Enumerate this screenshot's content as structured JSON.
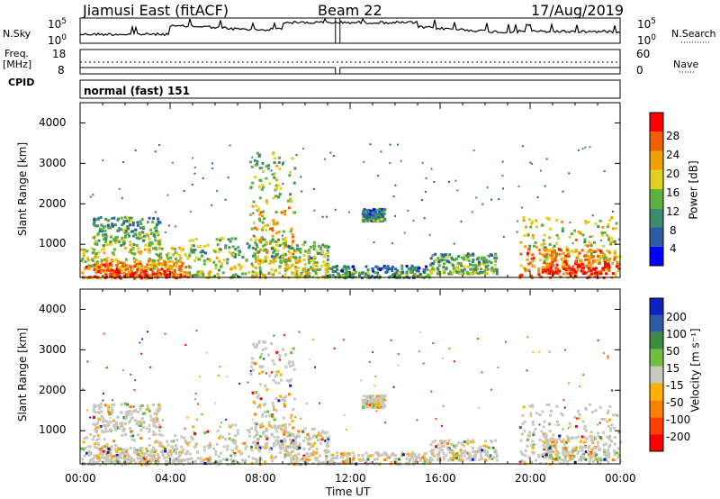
{
  "header": {
    "station": "Jiamusi East (fitACF)",
    "beam": "Beam 22",
    "date": "17/Aug/2019"
  },
  "labels": {
    "nsky": "N.Sky",
    "nsearch": "N.Search",
    "freq": "Freq.",
    "mhz": "[MHz]",
    "cpid": "CPID",
    "nave": "Nave",
    "mode": "normal (fast) 151",
    "slant_range": "Slant Range [km]",
    "time_ut": "Time UT",
    "power_label": "Power [dB]",
    "velocity_label": "Velocity [m s⁻¹]"
  },
  "ticks": {
    "noise_left": [
      "10^5",
      "10^0"
    ],
    "noise_right": [
      "10^5",
      "10^0"
    ],
    "freq_left": [
      "18",
      "8"
    ],
    "nave_right": [
      "60",
      "0"
    ],
    "range": [
      "1000",
      "2000",
      "3000",
      "4000"
    ],
    "time": [
      "00:00",
      "04:00",
      "08:00",
      "12:00",
      "16:00",
      "20:00",
      "00:00"
    ],
    "power": [
      "4",
      "8",
      "12",
      "16",
      "20",
      "24",
      "28"
    ],
    "velocity": [
      "-200",
      "-100",
      "-50",
      "-15",
      "15",
      "50",
      "100",
      "200"
    ]
  },
  "colors": {
    "power_scale": [
      "#0000ff",
      "#2a5ca8",
      "#3c8c6e",
      "#5cb040",
      "#e0d020",
      "#f0a000",
      "#f06000",
      "#ff0000"
    ],
    "velocity_scale": [
      "#ff0000",
      "#ff4000",
      "#ff8000",
      "#ffb000",
      "#c8c8c0",
      "#70c040",
      "#3c8c40",
      "#2a5ca8",
      "#1020c0"
    ]
  },
  "chart_data": [
    {
      "type": "line",
      "name": "noise",
      "x_range_hours": [
        0,
        24
      ],
      "y_scale": "log",
      "ylim": [
        1,
        100000
      ]
    },
    {
      "type": "line",
      "name": "frequency",
      "x_range_hours": [
        0,
        24
      ],
      "ylim": [
        8,
        18
      ]
    },
    {
      "type": "heatmap",
      "name": "power",
      "xlabel": "Time UT",
      "ylabel": "Slant Range [km]",
      "x_range_hours": [
        0,
        24
      ],
      "ylim": [
        180,
        4500
      ],
      "colorbar_range_db": [
        0,
        32
      ],
      "blobs": [
        {
          "t0": 0.0,
          "t1": 4.8,
          "r0": 180,
          "r1": 950,
          "level": 0.75
        },
        {
          "t0": 0.3,
          "t1": 4.5,
          "r0": 200,
          "r1": 650,
          "level": 0.9
        },
        {
          "t0": 0.5,
          "t1": 3.5,
          "r0": 1000,
          "r1": 1700,
          "level": 0.45
        },
        {
          "t0": 4.8,
          "t1": 9.0,
          "r0": 200,
          "r1": 1200,
          "level": 0.55
        },
        {
          "t0": 7.5,
          "t1": 9.5,
          "r0": 600,
          "r1": 3300,
          "level": 0.6
        },
        {
          "t0": 9.0,
          "t1": 11.0,
          "r0": 200,
          "r1": 1100,
          "level": 0.55
        },
        {
          "t0": 11.0,
          "t1": 15.5,
          "r0": 200,
          "r1": 500,
          "level": 0.35
        },
        {
          "t0": 12.5,
          "t1": 13.5,
          "r0": 1600,
          "r1": 1900,
          "level": 0.35
        },
        {
          "t0": 15.5,
          "t1": 18.5,
          "r0": 300,
          "r1": 800,
          "level": 0.45
        },
        {
          "t0": 19.5,
          "t1": 24.0,
          "r0": 200,
          "r1": 1700,
          "level": 0.75
        },
        {
          "t0": 20.5,
          "t1": 23.5,
          "r0": 300,
          "r1": 900,
          "level": 0.9
        }
      ]
    },
    {
      "type": "heatmap",
      "name": "velocity",
      "xlabel": "Time UT",
      "ylabel": "Slant Range [km]",
      "x_range_hours": [
        0,
        24
      ],
      "ylim": [
        180,
        4500
      ],
      "colorbar_range_ms": [
        -250,
        250
      ]
    }
  ]
}
